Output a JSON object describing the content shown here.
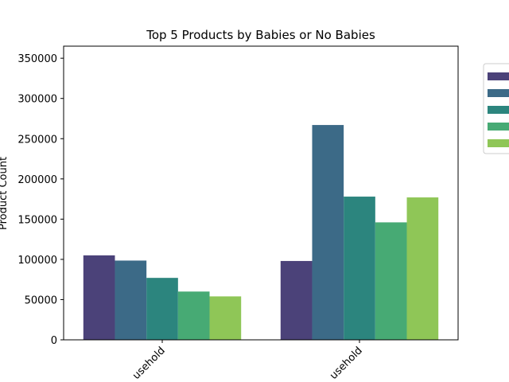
{
  "chart_data": {
    "type": "bar",
    "title": "Top 5 Products by Babies or No Babies",
    "xlabel": "",
    "ylabel": "Product Count",
    "categories": [
      "usehold",
      "usehold"
    ],
    "series": [
      {
        "values": [
          105000,
          98000
        ],
        "color": "#4b4279"
      },
      {
        "values": [
          98500,
          267000
        ],
        "color": "#3c6a87"
      },
      {
        "values": [
          77000,
          178000
        ],
        "color": "#2c857e"
      },
      {
        "values": [
          60000,
          146000
        ],
        "color": "#47aa74"
      },
      {
        "values": [
          54000,
          177000
        ],
        "color": "#8fc657"
      }
    ],
    "ylim": [
      0,
      365000
    ],
    "yticks": [
      0,
      50000,
      100000,
      150000,
      200000,
      250000,
      300000,
      350000
    ],
    "legend_position": "outside-right",
    "grid": false
  }
}
